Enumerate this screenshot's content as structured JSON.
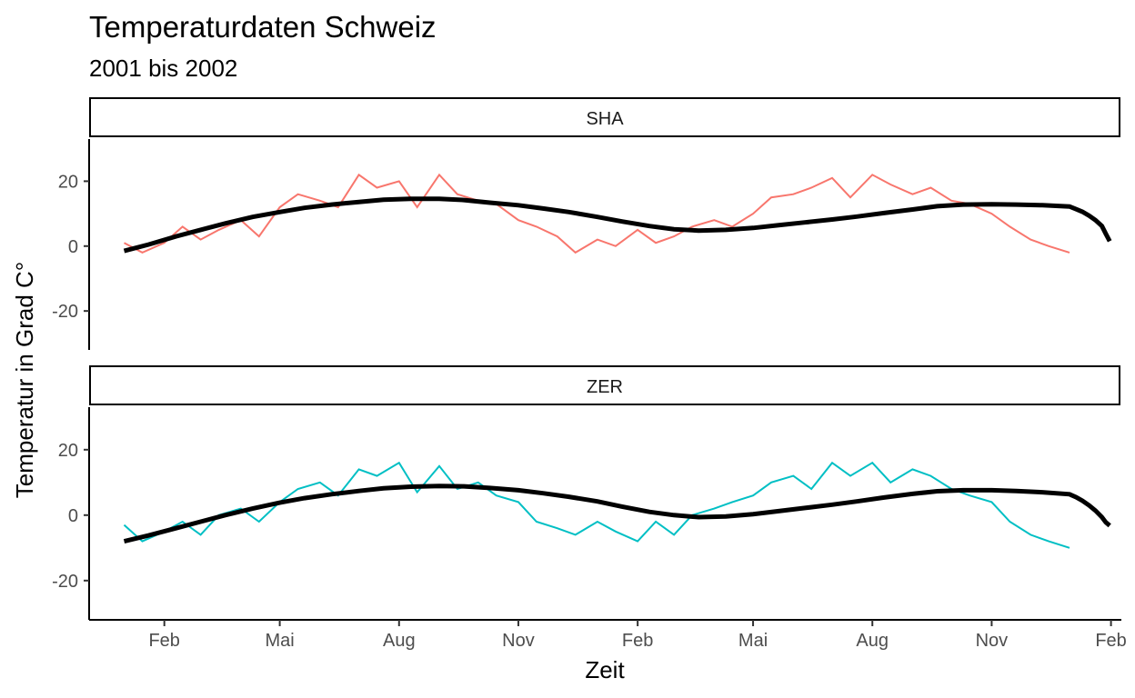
{
  "chart_data": {
    "type": "line",
    "title": "Temperaturdaten Schweiz",
    "subtitle": "2001 bis 2002",
    "xlabel": "Zeit",
    "ylabel": "Temperatur in Grad C°",
    "ylim": [
      -32,
      33
    ],
    "yticks": [
      -20,
      0,
      20
    ],
    "x_range": [
      "2000-12-05",
      "2003-02-09"
    ],
    "xticks": [
      {
        "date": "2001-02-01",
        "label": "Feb"
      },
      {
        "date": "2001-05-01",
        "label": "Mai"
      },
      {
        "date": "2001-08-01",
        "label": "Aug"
      },
      {
        "date": "2001-11-01",
        "label": "Nov"
      },
      {
        "date": "2002-02-01",
        "label": "Feb"
      },
      {
        "date": "2002-05-01",
        "label": "Mai"
      },
      {
        "date": "2002-08-01",
        "label": "Aug"
      },
      {
        "date": "2002-11-01",
        "label": "Nov"
      },
      {
        "date": "2003-02-01",
        "label": "Feb"
      }
    ],
    "grid": false,
    "legend": "none",
    "panels": [
      {
        "strip": "SHA",
        "color": "#F8766D",
        "smooth_color": "#000000",
        "x": [
          "2001-01-01",
          "2001-01-15",
          "2001-02-01",
          "2001-02-15",
          "2001-03-01",
          "2001-03-15",
          "2001-04-01",
          "2001-04-15",
          "2001-05-01",
          "2001-05-15",
          "2001-06-01",
          "2001-06-15",
          "2001-07-01",
          "2001-07-15",
          "2001-08-01",
          "2001-08-15",
          "2001-09-01",
          "2001-09-15",
          "2001-10-01",
          "2001-10-15",
          "2001-11-01",
          "2001-11-15",
          "2001-12-01",
          "2001-12-15",
          "2002-01-01",
          "2002-01-15",
          "2002-02-01",
          "2002-02-15",
          "2002-03-01",
          "2002-03-15",
          "2002-04-01",
          "2002-04-15",
          "2002-05-01",
          "2002-05-15",
          "2002-06-01",
          "2002-06-15",
          "2002-07-01",
          "2002-07-15",
          "2002-08-01",
          "2002-08-15",
          "2002-09-01",
          "2002-09-15",
          "2002-10-01",
          "2002-10-15",
          "2002-11-01",
          "2002-11-15",
          "2002-12-01",
          "2002-12-15",
          "2002-12-31"
        ],
        "values": [
          1,
          -2,
          1,
          6,
          2,
          5,
          8,
          3,
          12,
          16,
          14,
          12,
          22,
          18,
          20,
          12,
          22,
          16,
          14,
          13,
          8,
          6,
          3,
          -2,
          2,
          0,
          5,
          1,
          3,
          6,
          8,
          6,
          10,
          15,
          16,
          18,
          21,
          15,
          22,
          19,
          16,
          18,
          14,
          13,
          10,
          6,
          2,
          0,
          -2
        ],
        "smooth": [
          -1.5,
          0.5,
          3,
          5,
          7,
          9,
          10.5,
          11.8,
          12.8,
          13.6,
          14.3,
          14.6,
          14.6,
          14.2,
          13.4,
          12.6,
          11.6,
          10.5,
          9,
          7.6,
          6.2,
          5.2,
          4.8,
          5,
          5.6,
          6.4,
          7.3,
          8.2,
          9.1,
          10.2,
          11.3,
          12.3,
          12.8,
          12.9,
          12.8,
          12.6,
          12.2,
          11.4,
          10.6,
          9.4,
          8,
          6.2,
          3.8,
          1.5
        ],
        "smooth_x": [
          "2001-01-01",
          "2001-01-20",
          "2001-02-10",
          "2001-03-01",
          "2001-03-20",
          "2001-04-10",
          "2001-05-01",
          "2001-05-20",
          "2001-06-10",
          "2001-07-01",
          "2001-07-20",
          "2001-08-10",
          "2001-09-01",
          "2001-09-20",
          "2001-10-10",
          "2001-11-01",
          "2001-11-20",
          "2001-12-10",
          "2002-01-01",
          "2002-01-20",
          "2002-02-10",
          "2002-03-01",
          "2002-03-20",
          "2002-04-10",
          "2002-05-01",
          "2002-05-20",
          "2002-06-10",
          "2002-07-01",
          "2002-07-20",
          "2002-08-10",
          "2002-09-01",
          "2002-09-20",
          "2002-10-10",
          "2002-11-01",
          "2002-11-20",
          "2002-12-10",
          "2002-12-31",
          "2003-01-05",
          "2003-01-10",
          "2003-01-15",
          "2003-01-20",
          "2003-01-25",
          "2003-01-28",
          "2003-01-31"
        ]
      },
      {
        "strip": "ZER",
        "color": "#00BFC4",
        "smooth_color": "#000000",
        "x": [
          "2001-01-01",
          "2001-01-15",
          "2001-02-01",
          "2001-02-15",
          "2001-03-01",
          "2001-03-15",
          "2001-04-01",
          "2001-04-15",
          "2001-05-01",
          "2001-05-15",
          "2001-06-01",
          "2001-06-15",
          "2001-07-01",
          "2001-07-15",
          "2001-08-01",
          "2001-08-15",
          "2001-09-01",
          "2001-09-15",
          "2001-10-01",
          "2001-10-15",
          "2001-11-01",
          "2001-11-15",
          "2001-12-01",
          "2001-12-15",
          "2002-01-01",
          "2002-01-15",
          "2002-02-01",
          "2002-02-15",
          "2002-03-01",
          "2002-03-15",
          "2002-04-01",
          "2002-04-15",
          "2002-05-01",
          "2002-05-15",
          "2002-06-01",
          "2002-06-15",
          "2002-07-01",
          "2002-07-15",
          "2002-08-01",
          "2002-08-15",
          "2002-09-01",
          "2002-09-15",
          "2002-10-01",
          "2002-10-15",
          "2002-11-01",
          "2002-11-15",
          "2002-12-01",
          "2002-12-15",
          "2002-12-31"
        ],
        "values": [
          -3,
          -8,
          -5,
          -2,
          -6,
          0,
          2,
          -2,
          4,
          8,
          10,
          6,
          14,
          12,
          16,
          7,
          15,
          8,
          10,
          6,
          4,
          -2,
          -4,
          -6,
          -2,
          -5,
          -8,
          -2,
          -6,
          0,
          2,
          4,
          6,
          10,
          12,
          8,
          16,
          12,
          16,
          10,
          14,
          12,
          8,
          6,
          4,
          -2,
          -6,
          -8,
          -10
        ],
        "smooth": [
          -8,
          -6.2,
          -4,
          -2,
          0,
          2,
          3.8,
          5.2,
          6.4,
          7.4,
          8.2,
          8.7,
          8.9,
          8.8,
          8.3,
          7.6,
          6.7,
          5.6,
          4.2,
          2.6,
          1,
          0,
          -0.6,
          -0.4,
          0.3,
          1.2,
          2.2,
          3.2,
          4.2,
          5.4,
          6.5,
          7.3,
          7.6,
          7.6,
          7.4,
          7,
          6.4,
          5.5,
          4.4,
          3,
          1.4,
          -0.6,
          -2.2,
          -3.2
        ],
        "smooth_x": [
          "2001-01-01",
          "2001-01-20",
          "2001-02-10",
          "2001-03-01",
          "2001-03-20",
          "2001-04-10",
          "2001-05-01",
          "2001-05-20",
          "2001-06-10",
          "2001-07-01",
          "2001-07-20",
          "2001-08-10",
          "2001-09-01",
          "2001-09-20",
          "2001-10-10",
          "2001-11-01",
          "2001-11-20",
          "2001-12-10",
          "2002-01-01",
          "2002-01-20",
          "2002-02-10",
          "2002-03-01",
          "2002-03-20",
          "2002-04-10",
          "2002-05-01",
          "2002-05-20",
          "2002-06-10",
          "2002-07-01",
          "2002-07-20",
          "2002-08-10",
          "2002-09-01",
          "2002-09-20",
          "2002-10-10",
          "2002-11-01",
          "2002-11-20",
          "2002-12-10",
          "2002-12-31",
          "2003-01-05",
          "2003-01-10",
          "2003-01-15",
          "2003-01-20",
          "2003-01-25",
          "2003-01-28",
          "2003-01-31"
        ]
      }
    ]
  }
}
